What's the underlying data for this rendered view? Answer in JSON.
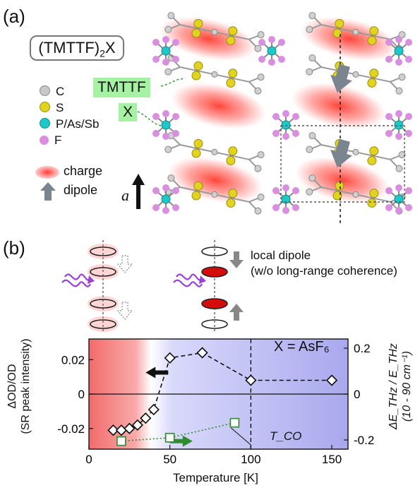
{
  "panel_a": {
    "label": "(a)",
    "formula_main": "(TMTTF)",
    "formula_sub": "2",
    "formula_tail": "X",
    "tag_tmttf": "TMTTF",
    "tag_x": "X",
    "legend": [
      {
        "label": "C",
        "color": "#c8c8c8"
      },
      {
        "label": "S",
        "color": "#e3d321"
      },
      {
        "label": "P/As/Sb",
        "color": "#1fc7c9"
      },
      {
        "label": "F",
        "color": "#d98ee0"
      }
    ],
    "charge_label": "charge",
    "dipole_label": "dipole",
    "axis_label": "a"
  },
  "panel_b": {
    "label": "(b)",
    "schematic_label_1": "local dipole",
    "schematic_label_2": "(w/o long-range coherence)",
    "chart_data": {
      "type": "scatter",
      "xlabel": "Temperature [K]",
      "ylabel_left_1": "ΔOD/OD",
      "ylabel_left_2": "(SR peak intensity)",
      "ylabel_right_1": "ΔE_THz / E_THz",
      "ylabel_right_2": "(10 - 90 cm⁻¹)",
      "annotation": "X = AsF₆",
      "tco_label": "T_CO",
      "tco_value": 100,
      "xlim": [
        0,
        160
      ],
      "xticks": [
        0,
        50,
        100,
        150
      ],
      "ylim_left": [
        -0.032,
        0.032
      ],
      "yticks_left": [
        "-0.02",
        "0",
        "0.02"
      ],
      "ylim_right": [
        -0.24,
        0.24
      ],
      "yticks_right": [
        "-0.2",
        "0",
        "0.2"
      ],
      "series": [
        {
          "axis": "left",
          "marker": "diamond",
          "color": "#111111",
          "line": "dashed",
          "x": [
            15,
            20,
            25,
            30,
            35,
            40,
            50,
            70,
            100,
            150
          ],
          "y": [
            -0.021,
            -0.021,
            -0.02,
            -0.018,
            -0.014,
            -0.009,
            0.021,
            0.024,
            0.008,
            0.008
          ]
        },
        {
          "axis": "right",
          "marker": "square",
          "color": "#2e8b2e",
          "line": "dotted",
          "x": [
            20,
            50,
            90
          ],
          "y": [
            -0.205,
            -0.19,
            -0.125
          ]
        }
      ]
    }
  }
}
